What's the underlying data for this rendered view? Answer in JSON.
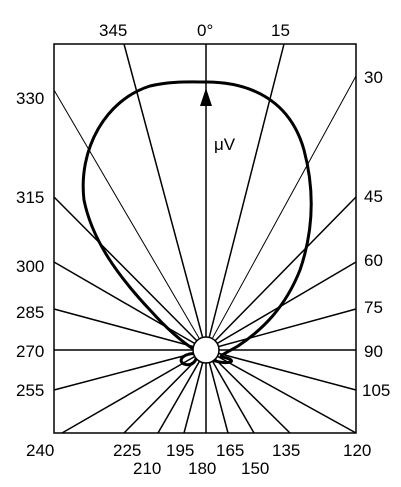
{
  "diagram": {
    "center_label": "0°",
    "unit_label": "μV",
    "angles": [
      {
        "label": "345"
      },
      {
        "label": "15"
      },
      {
        "label": "30"
      },
      {
        "label": "330"
      },
      {
        "label": "45"
      },
      {
        "label": "315"
      },
      {
        "label": "60"
      },
      {
        "label": "300"
      },
      {
        "label": "75"
      },
      {
        "label": "285"
      },
      {
        "label": "90"
      },
      {
        "label": "270"
      },
      {
        "label": "105"
      },
      {
        "label": "255"
      },
      {
        "label": "240"
      },
      {
        "label": "225"
      },
      {
        "label": "195"
      },
      {
        "label": "165"
      },
      {
        "label": "135"
      },
      {
        "label": "120"
      },
      {
        "label": "210"
      },
      {
        "label": "180"
      },
      {
        "label": "150"
      }
    ]
  }
}
